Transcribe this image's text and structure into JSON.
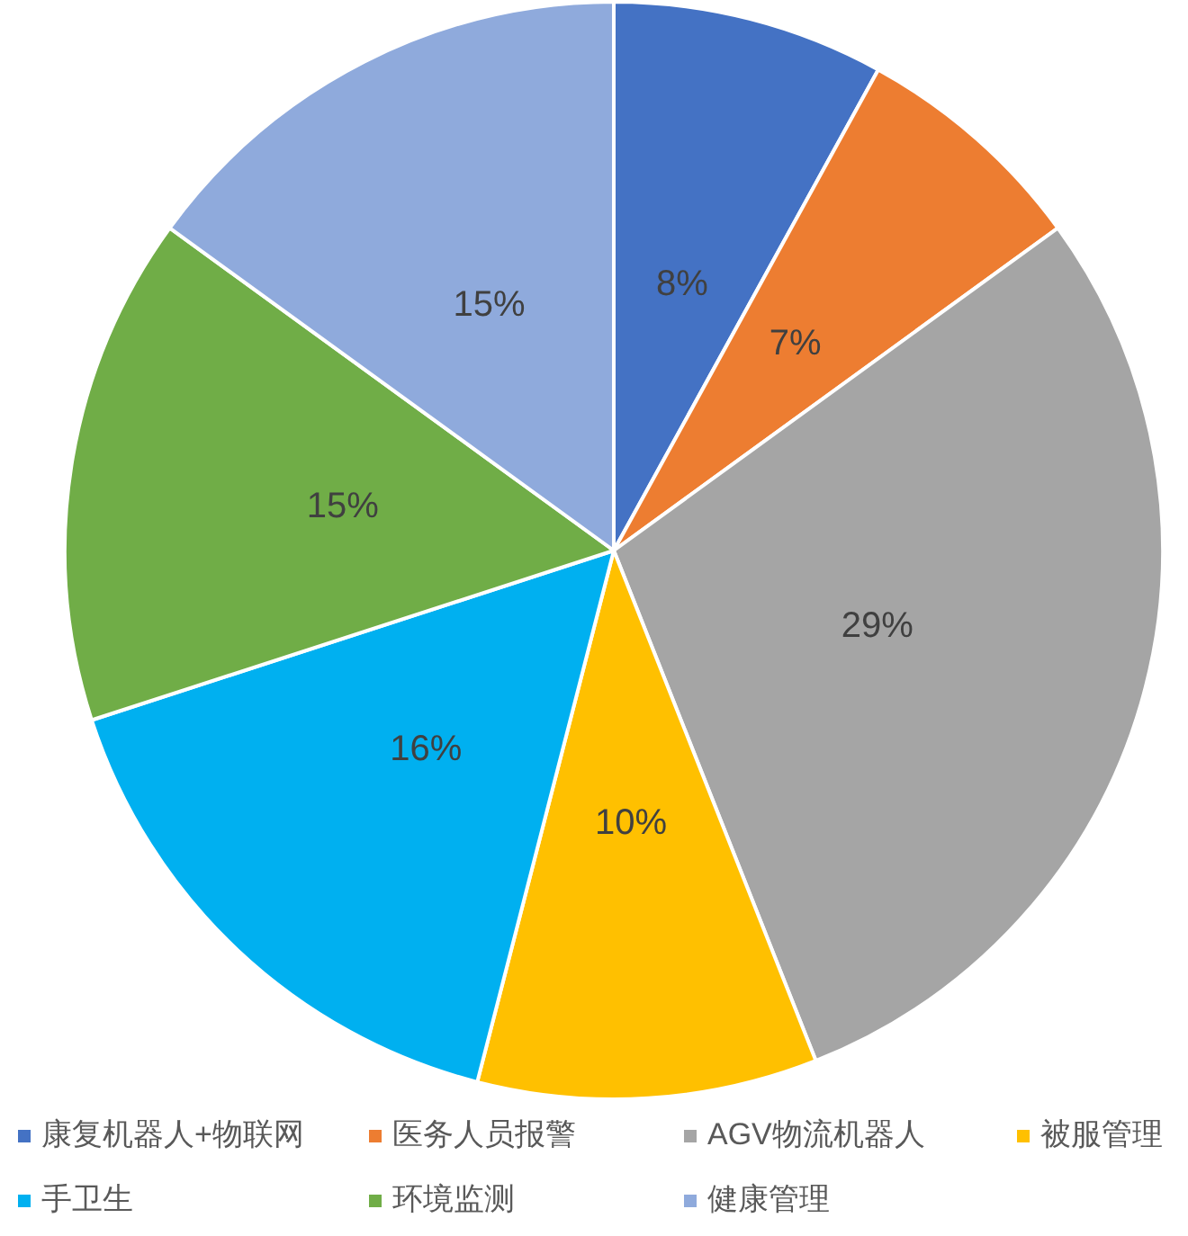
{
  "chart_data": {
    "type": "pie",
    "categories": [
      "康复机器人+物联网",
      "医务人员报警",
      "AGV物流机器人",
      "被服管理",
      "手卫生",
      "环境监测",
      "健康管理"
    ],
    "values": [
      8,
      7,
      29,
      10,
      16,
      15,
      15
    ],
    "value_labels": [
      "8%",
      "7%",
      "29%",
      "10%",
      "16%",
      "15%",
      "15%"
    ],
    "colors": [
      "#4472c4",
      "#ed7d31",
      "#a5a5a5",
      "#ffc000",
      "#00b0f0",
      "#70ad47",
      "#8faadc"
    ],
    "legend": "bottom"
  }
}
